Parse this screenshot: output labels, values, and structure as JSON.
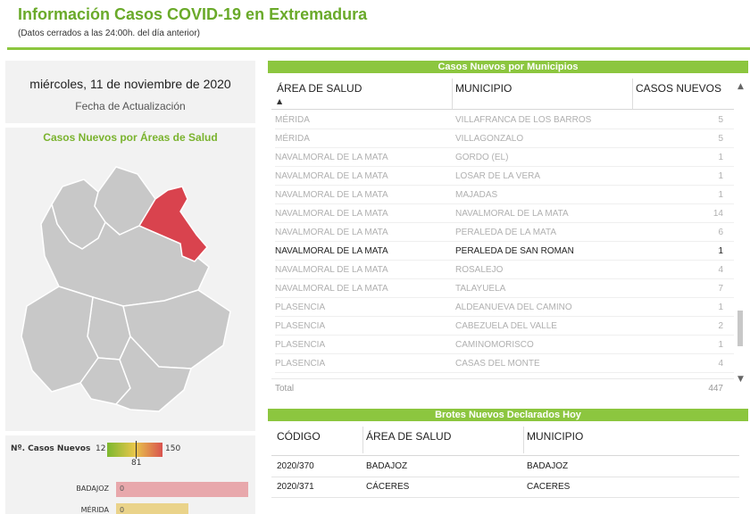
{
  "header": {
    "title": "Información Casos COVID-19 en Extremadura",
    "subtitle": "(Datos cerrados a las 24:00h. del día anterior)"
  },
  "update": {
    "date": "miércoles, 11 de noviembre de 2020",
    "label": "Fecha de Actualización"
  },
  "map": {
    "title": "Casos Nuevos por Áreas de Salud",
    "highlight_color": "#d9434e",
    "base_color": "#c8c8c8"
  },
  "legend": {
    "label": "Nº. Casos Nuevos",
    "min": "12",
    "max": "150",
    "mid": "81",
    "bars": [
      {
        "label": "BADAJOZ",
        "value": "0",
        "fraction": 1.0,
        "color": "#e8a8ac"
      },
      {
        "label": "MÉRIDA",
        "value": "0",
        "fraction": 0.55,
        "color": "#ead38a"
      }
    ]
  },
  "casos": {
    "section_title": "Casos Nuevos por Municipios",
    "columns": [
      "ÁREA DE SALUD",
      "MUNICIPIO",
      "CASOS NUEVOS"
    ],
    "rows": [
      {
        "area": "MÉRIDA",
        "municipio": "VILLAFRANCA DE LOS BARROS",
        "casos": "5"
      },
      {
        "area": "MÉRIDA",
        "municipio": "VILLAGONZALO",
        "casos": "5"
      },
      {
        "area": "NAVALMORAL DE LA MATA",
        "municipio": "GORDO (EL)",
        "casos": "1"
      },
      {
        "area": "NAVALMORAL DE LA MATA",
        "municipio": "LOSAR DE LA VERA",
        "casos": "1"
      },
      {
        "area": "NAVALMORAL DE LA MATA",
        "municipio": "MAJADAS",
        "casos": "1"
      },
      {
        "area": "NAVALMORAL DE LA MATA",
        "municipio": "NAVALMORAL DE LA MATA",
        "casos": "14"
      },
      {
        "area": "NAVALMORAL DE LA MATA",
        "municipio": "PERALEDA DE LA MATA",
        "casos": "6"
      },
      {
        "area": "NAVALMORAL DE LA MATA",
        "municipio": "PERALEDA DE SAN ROMAN",
        "casos": "1",
        "selected": true
      },
      {
        "area": "NAVALMORAL DE LA MATA",
        "municipio": "ROSALEJO",
        "casos": "4"
      },
      {
        "area": "NAVALMORAL DE LA MATA",
        "municipio": "TALAYUELA",
        "casos": "7"
      },
      {
        "area": "PLASENCIA",
        "municipio": "ALDEANUEVA DEL CAMINO",
        "casos": "1"
      },
      {
        "area": "PLASENCIA",
        "municipio": "CABEZUELA DEL VALLE",
        "casos": "2"
      },
      {
        "area": "PLASENCIA",
        "municipio": "CAMINOMORISCO",
        "casos": "1"
      },
      {
        "area": "PLASENCIA",
        "municipio": "CASAS DEL MONTE",
        "casos": "4"
      }
    ],
    "total_label": "Total",
    "total_value": "447"
  },
  "brotes": {
    "section_title": "Brotes Nuevos Declarados Hoy",
    "columns": [
      "CÓDIGO",
      "ÁREA DE SALUD",
      "MUNICIPIO"
    ],
    "rows": [
      {
        "codigo": "2020/370",
        "area": "BADAJOZ",
        "municipio": "BADAJOZ"
      },
      {
        "codigo": "2020/371",
        "area": "CÁCERES",
        "municipio": "CACERES"
      }
    ]
  }
}
